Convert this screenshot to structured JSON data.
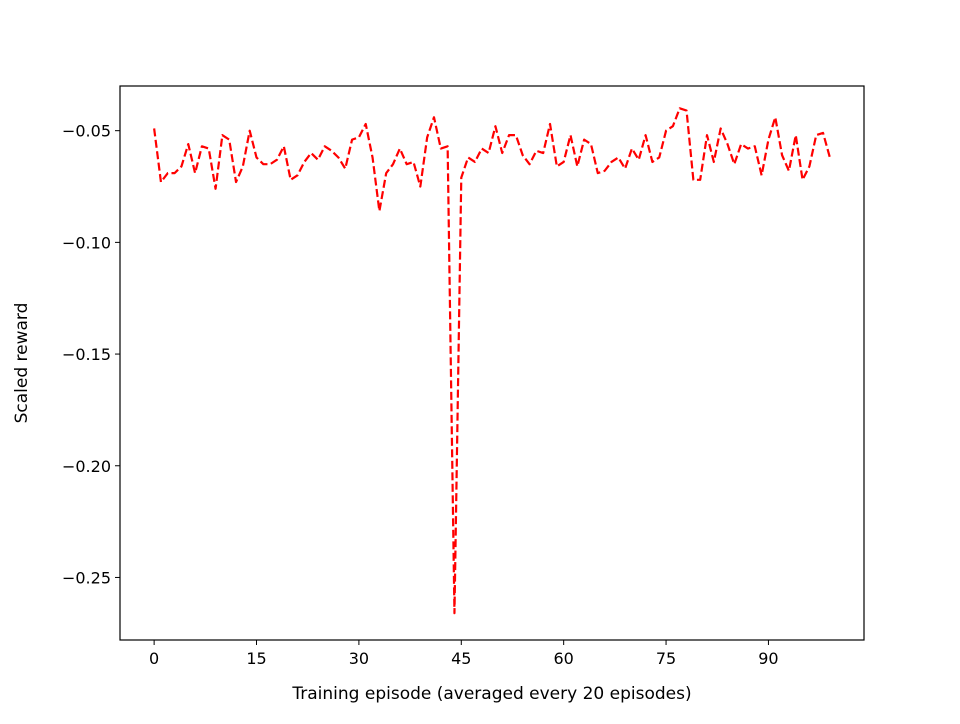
{
  "chart_data": {
    "type": "line",
    "title": "",
    "xlabel": "Training episode (averaged every 20 episodes)",
    "ylabel": "Scaled reward",
    "xlim": [
      -5,
      104
    ],
    "ylim": [
      -0.278,
      -0.03
    ],
    "xticks": [
      0,
      15,
      30,
      45,
      60,
      75,
      90
    ],
    "xtick_labels": [
      "0",
      "15",
      "30",
      "45",
      "60",
      "75",
      "90"
    ],
    "yticks": [
      -0.05,
      -0.1,
      -0.15,
      -0.2,
      -0.25
    ],
    "ytick_labels": [
      "−0.05",
      "−0.10",
      "−0.15",
      "−0.20",
      "−0.25"
    ],
    "grid": false,
    "series": [
      {
        "color": "#ff0000",
        "line_style": "dashed",
        "x": [
          0,
          1,
          2,
          3,
          4,
          5,
          6,
          7,
          8,
          9,
          10,
          11,
          12,
          13,
          14,
          15,
          16,
          17,
          18,
          19,
          20,
          21,
          22,
          23,
          24,
          25,
          26,
          27,
          28,
          29,
          30,
          31,
          32,
          33,
          34,
          35,
          36,
          37,
          38,
          39,
          40,
          41,
          42,
          43,
          44,
          45,
          46,
          47,
          48,
          49,
          50,
          51,
          52,
          53,
          54,
          55,
          56,
          57,
          58,
          59,
          60,
          61,
          62,
          63,
          64,
          65,
          66,
          67,
          68,
          69,
          70,
          71,
          72,
          73,
          74,
          75,
          76,
          77,
          78,
          79,
          80,
          81,
          82,
          83,
          84,
          85,
          86,
          87,
          88,
          89,
          90,
          91,
          92,
          93,
          94,
          95,
          96,
          97,
          98,
          99
        ],
        "values": [
          -0.049,
          -0.073,
          -0.069,
          -0.069,
          -0.066,
          -0.056,
          -0.069,
          -0.057,
          -0.058,
          -0.076,
          -0.052,
          -0.054,
          -0.073,
          -0.066,
          -0.05,
          -0.062,
          -0.065,
          -0.065,
          -0.063,
          -0.057,
          -0.072,
          -0.07,
          -0.064,
          -0.06,
          -0.063,
          -0.057,
          -0.059,
          -0.062,
          -0.067,
          -0.054,
          -0.053,
          -0.047,
          -0.062,
          -0.086,
          -0.069,
          -0.065,
          -0.058,
          -0.065,
          -0.064,
          -0.075,
          -0.053,
          -0.044,
          -0.058,
          -0.057,
          -0.266,
          -0.071,
          -0.062,
          -0.064,
          -0.058,
          -0.06,
          -0.048,
          -0.06,
          -0.052,
          -0.052,
          -0.061,
          -0.065,
          -0.059,
          -0.06,
          -0.047,
          -0.066,
          -0.064,
          -0.052,
          -0.066,
          -0.054,
          -0.056,
          -0.069,
          -0.068,
          -0.064,
          -0.062,
          -0.067,
          -0.058,
          -0.063,
          -0.052,
          -0.064,
          -0.062,
          -0.05,
          -0.048,
          -0.04,
          -0.041,
          -0.072,
          -0.072,
          -0.052,
          -0.064,
          -0.049,
          -0.056,
          -0.065,
          -0.056,
          -0.058,
          -0.057,
          -0.07,
          -0.054,
          -0.044,
          -0.061,
          -0.068,
          -0.052,
          -0.072,
          -0.066,
          -0.052,
          -0.051,
          -0.062
        ]
      }
    ]
  }
}
